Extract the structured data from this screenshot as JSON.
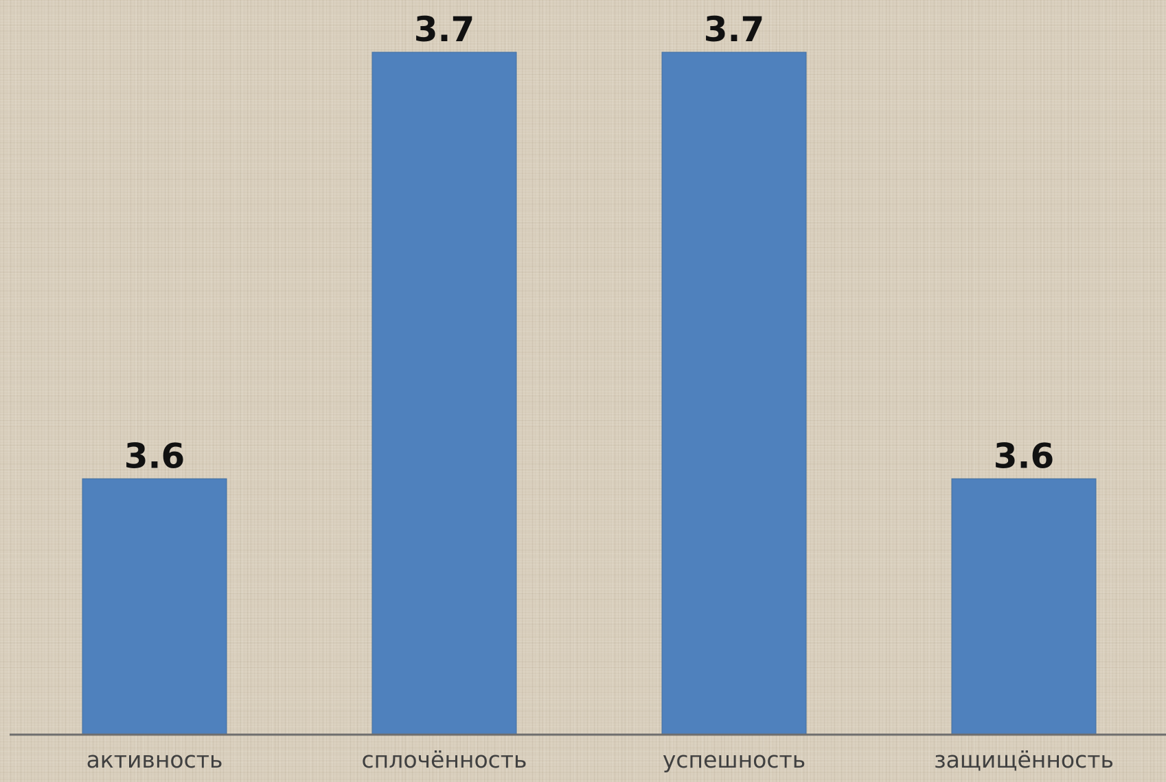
{
  "chart_data": {
    "type": "bar",
    "categories": [
      "активность",
      "сплочённость",
      "успешность",
      "защищённость"
    ],
    "values": [
      3.6,
      3.7,
      3.7,
      3.6
    ],
    "data_labels": [
      "3.6",
      "3.7",
      "3.7",
      "3.6"
    ],
    "title": "",
    "xlabel": "",
    "ylabel": "",
    "ylim": [
      3.54,
      3.7
    ],
    "grid": false,
    "legend": "none",
    "bar_color": "#4f81bd",
    "axis_color": "#6e6e6e"
  }
}
